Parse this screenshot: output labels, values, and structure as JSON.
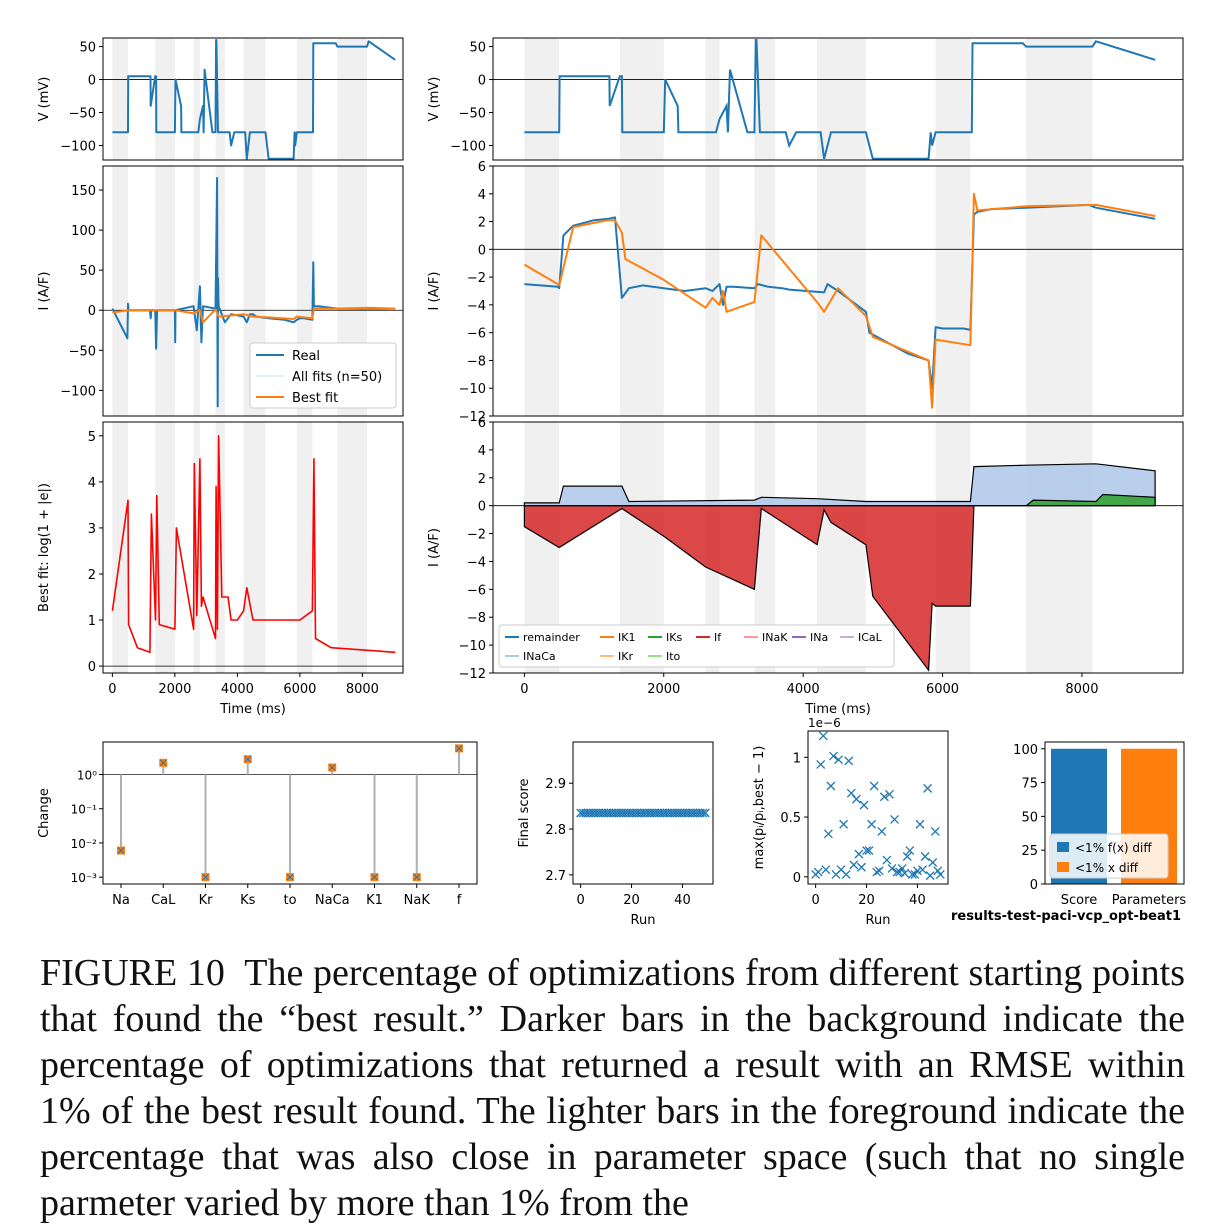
{
  "figure_tag": "results-test-paci-vcp_opt-beat1",
  "caption": {
    "label": "FIGURE 10",
    "text": "The percentage of optimizations from different starting points that found the “best result.” Darker bars in the background indicate the percentage of optimizations that returned a result with an RMSE within 1% of the best result found. The lighter bars in the foreground indicate the percentage that was also close in parameter space (such that no single parmeter varied by more than 1% from the"
  },
  "colors": {
    "real": "#1f77b4",
    "best_fit": "#ff7f0e",
    "error": "#ff0000",
    "shade": "#f0f0f0",
    "grid": "#b0b0b0"
  },
  "chart_data": [
    {
      "id": "voltage_full",
      "type": "line",
      "xlabel": "",
      "ylabel": "V (mV)",
      "xlim": [
        -300,
        9300
      ],
      "ylim": [
        -122,
        63
      ],
      "yticks": [
        50,
        0,
        -50,
        -100
      ],
      "ytick_labels": [
        "50",
        "0",
        "−50",
        "−100"
      ],
      "series": [
        {
          "x": [
            0,
            200,
            500,
            505,
            1200,
            1220,
            1225,
            1370,
            1400,
            1405,
            2000,
            2020,
            2200,
            2210,
            2600,
            2750,
            2800,
            2900,
            2920,
            2950,
            3200,
            3300,
            3320,
            3330,
            3380,
            3450,
            3470,
            3500,
            3700,
            3750,
            3800,
            3900,
            3950,
            4200,
            4250,
            4300,
            4400,
            4450,
            4850,
            4900,
            5000,
            5100,
            5300,
            5800,
            5830,
            5850,
            5900,
            5950,
            6100,
            6400,
            6420,
            6430,
            6450,
            6500,
            7150,
            7200,
            8150,
            8200,
            9050
          ],
          "y": [
            -80,
            -80,
            -80,
            5,
            5,
            5,
            -40,
            5,
            5,
            -80,
            -80,
            0,
            -40,
            -80,
            -80,
            -80,
            -60,
            -40,
            -80,
            15,
            -80,
            -80,
            60,
            60,
            -80,
            -80,
            -80,
            -80,
            -80,
            -80,
            -100,
            -80,
            -80,
            -80,
            -80,
            -120,
            -80,
            -80,
            -80,
            -80,
            -120,
            -120,
            -120,
            -120,
            -80,
            -100,
            -80,
            -80,
            -80,
            -80,
            -80,
            55,
            55,
            55,
            55,
            50,
            50,
            58,
            30
          ]
        }
      ]
    },
    {
      "id": "current_full",
      "type": "line",
      "xlabel": "",
      "ylabel": "I (A/F)",
      "xlim": [
        -300,
        9300
      ],
      "ylim": [
        -132,
        180
      ],
      "yticks": [
        150,
        100,
        50,
        0,
        -50,
        -100
      ],
      "ytick_labels": [
        "150",
        "100",
        "50",
        "0",
        "−50",
        "−100"
      ],
      "legend": {
        "position": "lower-right",
        "entries": [
          "Real",
          "All fits (n=50)",
          "Best fit"
        ]
      },
      "series": [
        {
          "name": "Real",
          "x": [
            0,
            480,
            500,
            520,
            1200,
            1225,
            1250,
            1370,
            1400,
            1430,
            2000,
            2010,
            2020,
            2600,
            2700,
            2800,
            2850,
            2900,
            3300,
            3350,
            3370,
            3380,
            3400,
            3600,
            3700,
            3800,
            4200,
            4300,
            4400,
            4500,
            4600,
            5000,
            5500,
            5800,
            5900,
            6000,
            6100,
            6400,
            6430,
            6450,
            6600,
            7200,
            8200,
            9050
          ],
          "y": [
            2,
            -35,
            8,
            0,
            0,
            -10,
            0,
            0,
            -48,
            0,
            0,
            -40,
            0,
            5,
            -25,
            30,
            -40,
            5,
            2,
            165,
            -120,
            40,
            5,
            -15,
            -10,
            -5,
            -8,
            -15,
            -5,
            -5,
            -8,
            -10,
            -12,
            -15,
            -12,
            -10,
            -10,
            -12,
            60,
            5,
            5,
            2,
            2,
            2
          ]
        },
        {
          "name": "Best fit",
          "x": [
            0,
            500,
            1200,
            1400,
            2000,
            2600,
            2800,
            2900,
            3300,
            3400,
            4200,
            4500,
            5000,
            5800,
            5900,
            6400,
            6450,
            7200,
            8200,
            9050
          ],
          "y": [
            -3,
            0,
            0,
            0,
            0,
            -4,
            0,
            -15,
            1,
            -8,
            -5,
            -8,
            -9,
            -11,
            -8,
            -10,
            2,
            2,
            3,
            2
          ]
        }
      ]
    },
    {
      "id": "error_full",
      "type": "line",
      "xlabel": "Time (ms)",
      "ylabel": "Best fit: log(1 + |e|)",
      "xlim": [
        -300,
        9300
      ],
      "ylim": [
        -0.15,
        5.3
      ],
      "yticks": [
        5,
        4,
        3,
        2,
        1,
        0
      ],
      "xticks": [
        0,
        2000,
        4000,
        6000,
        8000
      ],
      "series": [
        {
          "x": [
            0,
            500,
            520,
            800,
            1200,
            1250,
            1380,
            1420,
            1500,
            2000,
            2050,
            2600,
            2620,
            2700,
            2800,
            2850,
            2900,
            3300,
            3320,
            3360,
            3400,
            3500,
            3700,
            3800,
            4000,
            4200,
            4300,
            4500,
            5000,
            6000,
            6400,
            6450,
            6500,
            7000,
            9050
          ],
          "y": [
            1.2,
            3.6,
            0.9,
            0.4,
            0.3,
            3.3,
            1.0,
            3.7,
            0.9,
            0.8,
            3.0,
            0.8,
            4.4,
            1.1,
            4.5,
            1.3,
            1.5,
            0.6,
            3.9,
            0.8,
            5.0,
            1.5,
            1.5,
            1.0,
            1.0,
            1.2,
            1.7,
            1.0,
            1.0,
            1.0,
            1.2,
            4.5,
            0.6,
            0.4,
            0.3
          ]
        }
      ]
    },
    {
      "id": "voltage_zoom",
      "type": "line",
      "xlabel": "",
      "ylabel": "V (mV)",
      "xlim": [
        -450,
        9450
      ],
      "ylim": [
        -122,
        63
      ],
      "yticks": [
        50,
        0,
        -50,
        -100
      ],
      "ytick_labels": [
        "50",
        "0",
        "−50",
        "−100"
      ]
    },
    {
      "id": "current_zoom",
      "type": "line",
      "xlabel": "",
      "ylabel": "I (A/F)",
      "xlim": [
        -450,
        9450
      ],
      "ylim": [
        -12,
        6
      ],
      "yticks": [
        6,
        4,
        2,
        0,
        -2,
        -4,
        -6,
        -8,
        -10,
        -12
      ],
      "ytick_labels": [
        "6",
        "4",
        "2",
        "0",
        "−2",
        "−4",
        "−6",
        "−8",
        "−10",
        "−12"
      ],
      "series": [
        {
          "name": "Real",
          "x": [
            0,
            480,
            500,
            560,
            700,
            1000,
            1200,
            1300,
            1400,
            1500,
            1700,
            2000,
            2300,
            2600,
            2700,
            2800,
            2850,
            2900,
            3000,
            3300,
            3350,
            3500,
            3700,
            3800,
            4300,
            4350,
            4500,
            4900,
            4950,
            5500,
            5800,
            5850,
            5900,
            6000,
            6300,
            6400,
            6450,
            6500,
            6700,
            7200,
            8100,
            8200,
            9050
          ],
          "y": [
            -2.5,
            -2.7,
            -2.8,
            1.0,
            1.7,
            2.1,
            2.2,
            2.3,
            -3.5,
            -2.8,
            -2.6,
            -2.8,
            -3.0,
            -2.8,
            -3.0,
            -2.5,
            -4.0,
            -2.7,
            -2.7,
            -2.8,
            -2.5,
            -2.7,
            -2.8,
            -2.9,
            -3.1,
            -2.5,
            -3.0,
            -4.5,
            -6.0,
            -7.5,
            -8.0,
            -10.0,
            -5.6,
            -5.7,
            -5.7,
            -5.8,
            2.5,
            2.7,
            2.9,
            3.0,
            3.2,
            3.0,
            2.2
          ]
        },
        {
          "name": "Best fit",
          "x": [
            0,
            480,
            500,
            700,
            1000,
            1200,
            1300,
            1400,
            1450,
            2000,
            2600,
            2700,
            2800,
            2850,
            2900,
            3300,
            3400,
            4200,
            4300,
            4500,
            4900,
            5000,
            5800,
            5850,
            5900,
            6400,
            6450,
            6500,
            7200,
            8200,
            9050
          ],
          "y": [
            -1.1,
            -2.5,
            -2.6,
            1.6,
            1.9,
            2.1,
            2.1,
            1.2,
            -0.7,
            -2.2,
            -4.2,
            -3.5,
            -4.0,
            -3.0,
            -4.5,
            -3.8,
            1.0,
            -3.8,
            -4.5,
            -2.8,
            -4.8,
            -6.3,
            -8.0,
            -11.4,
            -6.5,
            -6.9,
            4.0,
            2.8,
            3.1,
            3.2,
            2.4
          ]
        }
      ]
    },
    {
      "id": "contributions",
      "type": "area",
      "xlabel": "Time (ms)",
      "ylabel": "I (A/F)",
      "xlim": [
        -450,
        9450
      ],
      "ylim": [
        -12,
        6
      ],
      "yticks": [
        6,
        4,
        2,
        0,
        -2,
        -4,
        -6,
        -8,
        -10,
        -12
      ],
      "ytick_labels": [
        "6",
        "4",
        "2",
        "0",
        "−2",
        "−4",
        "−6",
        "−8",
        "−10",
        "−12"
      ],
      "xticks": [
        0,
        2000,
        4000,
        6000,
        8000
      ],
      "legend": {
        "position": "lower-left",
        "ncol": 7,
        "entries": [
          {
            "label": "remainder",
            "color": "#1f77b4"
          },
          {
            "label": "IK1",
            "color": "#ff7f0e"
          },
          {
            "label": "IKs",
            "color": "#2ca02c"
          },
          {
            "label": "If",
            "color": "#d62728"
          },
          {
            "label": "INaK",
            "color": "#ff9896"
          },
          {
            "label": "INa",
            "color": "#9467bd"
          },
          {
            "label": "ICaL",
            "color": "#c5b0d5"
          },
          {
            "label": "INaCa",
            "color": "#aec7e8"
          },
          {
            "label": "IKr",
            "color": "#ffbb78"
          },
          {
            "label": "Ito",
            "color": "#98df8a"
          }
        ]
      },
      "series": [
        {
          "name": "If",
          "x": [
            0,
            500,
            1400,
            2000,
            2600,
            3300,
            3400,
            4200,
            4300,
            4400,
            4900,
            5000,
            5800,
            5850,
            5900,
            6400,
            6450
          ],
          "y": [
            -1.5,
            -3,
            -0.2,
            -2.2,
            -4.4,
            -6,
            -0.2,
            -2.8,
            -0.3,
            -1.2,
            -2.8,
            -6.5,
            -11.8,
            -7,
            -7.2,
            -7.2,
            0
          ]
        },
        {
          "name": "INaCa",
          "x": [
            0,
            500,
            560,
            1400,
            1500,
            3300,
            3400,
            4200,
            4900,
            6400,
            6450,
            7200,
            8200,
            9050
          ],
          "y": [
            0.2,
            0.2,
            1.4,
            1.4,
            0.3,
            0.4,
            0.6,
            0.5,
            0.3,
            0.3,
            2.8,
            2.9,
            3.0,
            2.5
          ]
        },
        {
          "name": "IKs",
          "x": [
            6450,
            7200,
            7300,
            8200,
            8300,
            9050
          ],
          "y": [
            0,
            0,
            0.4,
            0.3,
            0.8,
            0.6
          ]
        }
      ]
    },
    {
      "id": "parameter_change",
      "type": "scatter",
      "xlabel": "",
      "ylabel": "Change",
      "categories": [
        "Na",
        "CaL",
        "Kr",
        "Ks",
        "to",
        "NaCa",
        "K1",
        "NaK",
        "f"
      ],
      "values": [
        0.006,
        2.2,
        0.001,
        2.8,
        0.001,
        1.6,
        0.001,
        0.001,
        5.8
      ],
      "ylog": true,
      "ytick_labels": [
        "10⁰",
        "10⁻¹",
        "10⁻²",
        "10⁻³"
      ]
    },
    {
      "id": "final_score",
      "type": "scatter",
      "xlabel": "Run",
      "ylabel": "Final score",
      "xlim": [
        -3,
        52
      ],
      "ylim": [
        2.68,
        2.99
      ],
      "yticks": [
        2.7,
        2.8,
        2.9
      ],
      "xticks": [
        0,
        20,
        40
      ],
      "value": 2.835,
      "n_runs": 50
    },
    {
      "id": "parameter_distance",
      "type": "scatter",
      "xlabel": "Run",
      "ylabel": "max(pᵢ/pᵢ,best − 1)",
      "offset_text": "1e−6",
      "xlim": [
        -3,
        52
      ],
      "ylim": [
        -0.06,
        1.22
      ],
      "yticks": [
        0.0,
        0.5,
        1.0
      ],
      "xticks": [
        0,
        20,
        40
      ],
      "x": [
        0,
        1,
        2,
        3,
        4,
        5,
        6,
        7,
        8,
        9,
        10,
        11,
        12,
        13,
        14,
        15,
        16,
        17,
        18,
        19,
        20,
        21,
        22,
        23,
        24,
        25,
        26,
        27,
        28,
        29,
        30,
        31,
        32,
        33,
        34,
        35,
        36,
        37,
        38,
        39,
        40,
        41,
        42,
        43,
        44,
        45,
        46,
        47,
        48,
        49
      ],
      "y": [
        0.02,
        0.04,
        0.94,
        1.18,
        0.06,
        0.36,
        0.76,
        1.01,
        0.02,
        0.98,
        0.06,
        0.44,
        0.02,
        0.97,
        0.7,
        0.1,
        0.65,
        0.19,
        0.08,
        0.6,
        0.22,
        0.22,
        0.44,
        0.76,
        0.04,
        0.05,
        0.38,
        0.67,
        0.14,
        0.69,
        0.07,
        0.48,
        0.04,
        0.04,
        0.07,
        0.03,
        0.17,
        0.22,
        0.02,
        0.02,
        0.05,
        0.44,
        0.06,
        0.17,
        0.74,
        0.01,
        0.12,
        0.38,
        0.05,
        0.02
      ]
    },
    {
      "id": "percentages",
      "type": "bar",
      "categories": [
        "Score",
        "Parameters"
      ],
      "values": [
        100,
        100
      ],
      "ylim": [
        0,
        105
      ],
      "yticks": [
        0,
        25,
        50,
        75,
        100
      ],
      "legend": {
        "position": "lower-left",
        "entries": [
          {
            "label": "<1% f(x) diff",
            "color": "#1f77b4"
          },
          {
            "label": "<1% x diff",
            "color": "#ff7f0e"
          }
        ]
      }
    }
  ]
}
